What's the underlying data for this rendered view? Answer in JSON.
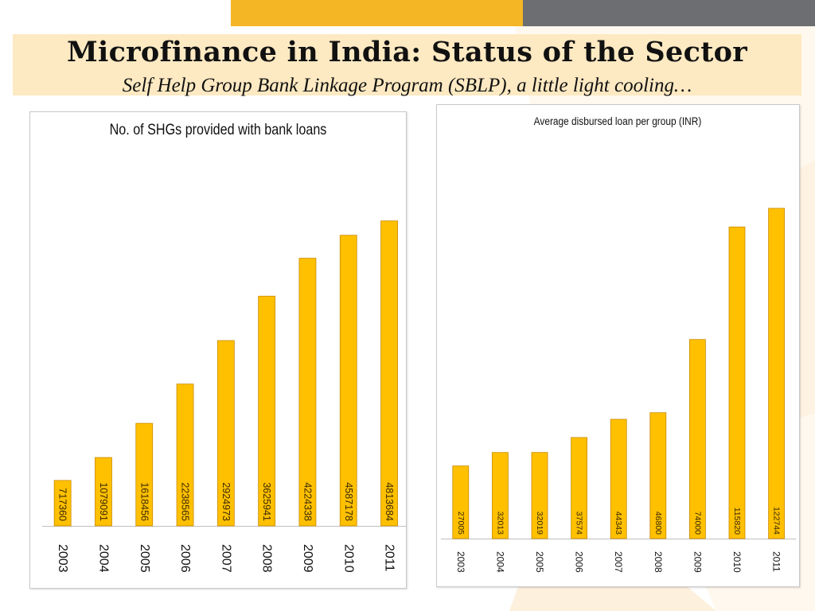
{
  "slide": {
    "title": "Microfinance in India: Status of the Sector",
    "subtitle": "Self Help Group Bank Linkage Program (SBLP), a little light cooling…"
  },
  "colors": {
    "bar_fill": "#ffc000",
    "bar_stroke": "#c98a00",
    "accent_yellow": "#f5b626",
    "accent_gray": "#6d6e71",
    "title_band": "#fde9c2"
  },
  "chart_data": [
    {
      "type": "bar",
      "title": "No. of SHGs provided with bank loans",
      "categories": [
        "2003",
        "2004",
        "2005",
        "2006",
        "2007",
        "2008",
        "2009",
        "2010",
        "2011"
      ],
      "values": [
        717360,
        1079091,
        1618456,
        2238565,
        2924973,
        3625941,
        4224338,
        4587178,
        4813684
      ],
      "data_labels": [
        "717360",
        "1079091",
        "1618456",
        "2238565",
        "2924973",
        "3625941",
        "4224338",
        "4587178",
        "4813684"
      ],
      "ylim": [
        0,
        5500000
      ],
      "grid": false,
      "legend": "none"
    },
    {
      "type": "bar",
      "title": "Average disbursed loan per group (INR)",
      "categories": [
        "2003",
        "2004",
        "2005",
        "2006",
        "2007",
        "2008",
        "2009",
        "2010",
        "2011"
      ],
      "values": [
        27005,
        32013,
        32019,
        37574,
        44343,
        46800,
        74000,
        115820,
        122744
      ],
      "data_labels": [
        "27005",
        "32013",
        "32019",
        "37574",
        "44343",
        "46800",
        "74000",
        "115820",
        "122744"
      ],
      "ylim": [
        0,
        136000
      ],
      "grid": false,
      "legend": "none"
    }
  ]
}
